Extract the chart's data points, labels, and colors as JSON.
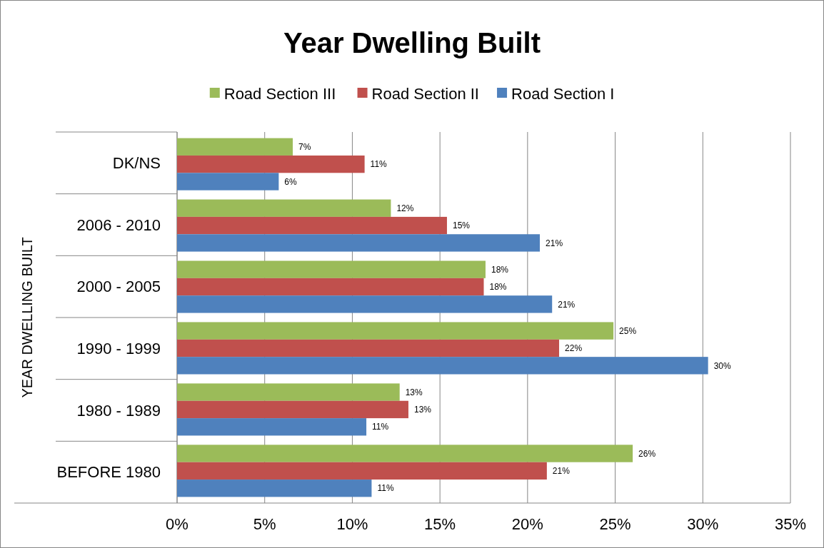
{
  "chart_data": {
    "type": "bar",
    "orientation": "horizontal",
    "title": "Year Dwelling Built",
    "ylabel": "YEAR DWELLING BUILT",
    "categories": [
      "DK/NS",
      "2006 - 2010",
      "2000 - 2005",
      "1990 - 1999",
      "1980 - 1989",
      "BEFORE 1980"
    ],
    "series": [
      {
        "name": "Road Section III",
        "color": "#9bbb59",
        "values": [
          6.6,
          12.2,
          17.6,
          24.9,
          12.7,
          26.0
        ],
        "value_labels": [
          "7%",
          "12%",
          "18%",
          "25%",
          "13%",
          "26%"
        ]
      },
      {
        "name": "Road Section II",
        "color": "#c0504d",
        "values": [
          10.7,
          15.4,
          17.5,
          21.8,
          13.2,
          21.1
        ],
        "value_labels": [
          "11%",
          "15%",
          "18%",
          "22%",
          "13%",
          "21%"
        ]
      },
      {
        "name": "Road Section I",
        "color": "#4f81bd",
        "values": [
          5.8,
          20.7,
          21.4,
          30.3,
          10.8,
          11.1
        ],
        "value_labels": [
          "6%",
          "21%",
          "21%",
          "30%",
          "11%",
          "11%"
        ]
      }
    ],
    "xlim": [
      0,
      35
    ],
    "xticks": [
      {
        "value": 0,
        "label": "0%"
      },
      {
        "value": 5,
        "label": "5%"
      },
      {
        "value": 10,
        "label": "10%"
      },
      {
        "value": 15,
        "label": "15%"
      },
      {
        "value": 20,
        "label": "20%"
      },
      {
        "value": 25,
        "label": "25%"
      },
      {
        "value": 30,
        "label": "30%"
      },
      {
        "value": 35,
        "label": "35%"
      }
    ],
    "grid": "x",
    "legend": "top"
  }
}
